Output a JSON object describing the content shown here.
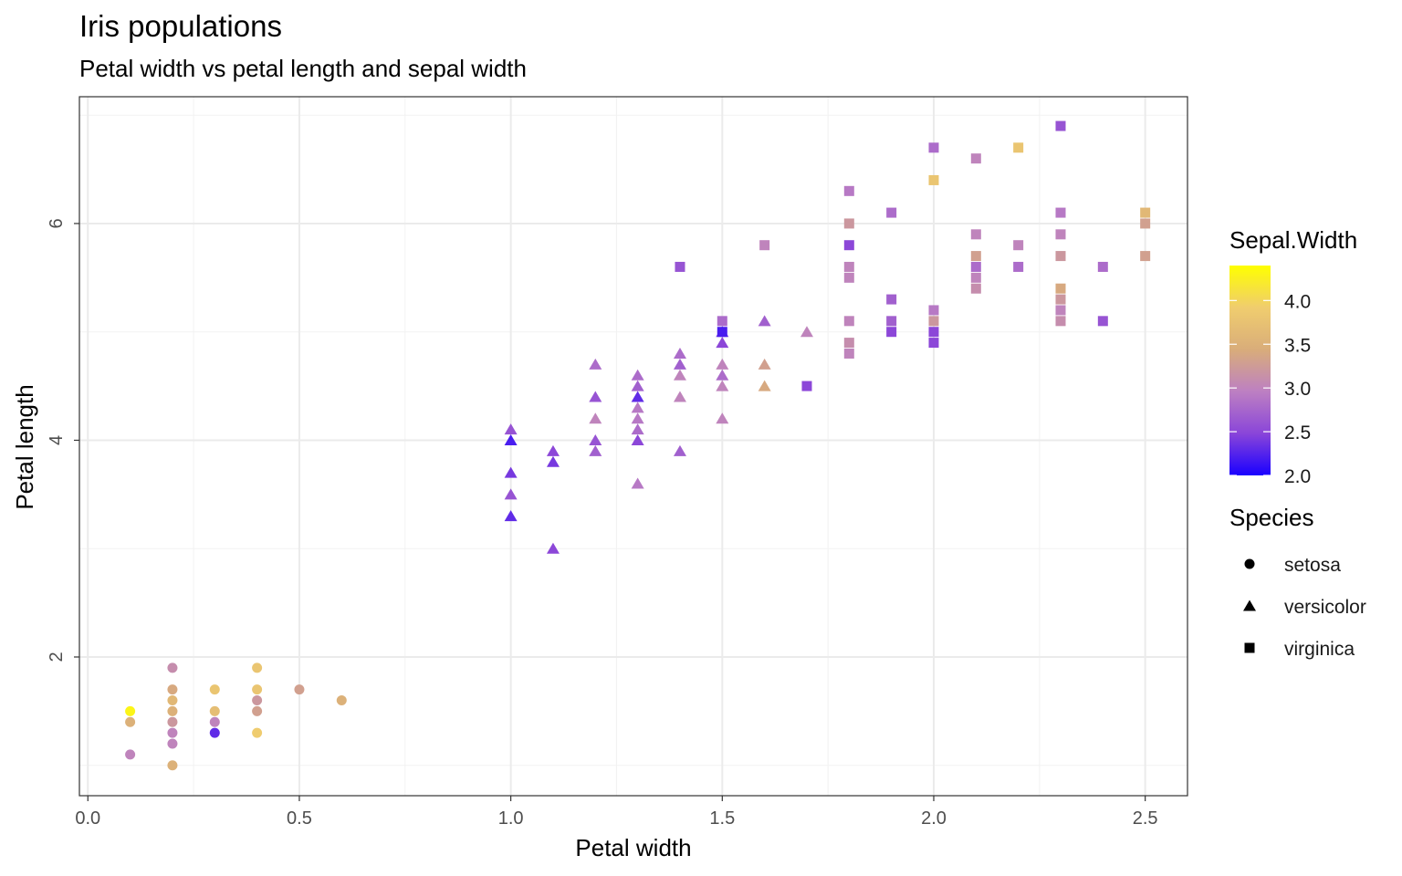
{
  "chart_data": {
    "type": "scatter",
    "title": "Iris populations",
    "subtitle": "Petal width vs petal length and sepal width",
    "xlabel": "Petal width",
    "ylabel": "Petal length",
    "xlim": [
      -0.02,
      2.6
    ],
    "ylim": [
      0.72,
      7.17
    ],
    "x_ticks": [
      "0.0",
      "0.5",
      "1.0",
      "1.5",
      "2.0",
      "2.5"
    ],
    "y_ticks": [
      "2",
      "4",
      "6"
    ],
    "grid": true,
    "legend_position": "right",
    "color_legend": {
      "title": "Sepal.Width",
      "ticks": [
        "2.0",
        "2.5",
        "3.0",
        "3.5",
        "4.0"
      ],
      "range": [
        2.0,
        4.4
      ],
      "colors": [
        "#1a00ff",
        "#8a45d9",
        "#bd80c2",
        "#d9ad7a",
        "#f0cd6e",
        "#ffff00"
      ]
    },
    "shape_legend": {
      "title": "Species",
      "entries": [
        {
          "label": "setosa",
          "shape": "circle"
        },
        {
          "label": "versicolor",
          "shape": "triangle"
        },
        {
          "label": "virginica",
          "shape": "square"
        }
      ]
    },
    "series": [
      {
        "name": "setosa",
        "shape": "circle",
        "points": [
          [
            0.1,
            1.5,
            4.3
          ],
          [
            0.1,
            1.4,
            3.5
          ],
          [
            0.1,
            1.1,
            3.0
          ],
          [
            0.2,
            1.9,
            3.1
          ],
          [
            0.2,
            1.7,
            3.4
          ],
          [
            0.2,
            1.6,
            3.6
          ],
          [
            0.2,
            1.5,
            3.5
          ],
          [
            0.2,
            1.4,
            3.2
          ],
          [
            0.2,
            1.3,
            3.0
          ],
          [
            0.2,
            1.2,
            3.0
          ],
          [
            0.2,
            1.0,
            3.5
          ],
          [
            0.3,
            1.7,
            3.8
          ],
          [
            0.3,
            1.5,
            3.7
          ],
          [
            0.3,
            1.4,
            3.0
          ],
          [
            0.3,
            1.3,
            2.3
          ],
          [
            0.4,
            1.9,
            3.8
          ],
          [
            0.4,
            1.7,
            3.8
          ],
          [
            0.4,
            1.6,
            3.2
          ],
          [
            0.4,
            1.5,
            3.3
          ],
          [
            0.4,
            1.3,
            3.9
          ],
          [
            0.5,
            1.7,
            3.3
          ],
          [
            0.6,
            1.6,
            3.5
          ]
        ]
      },
      {
        "name": "versicolor",
        "shape": "triangle",
        "points": [
          [
            1.0,
            4.1,
            2.6
          ],
          [
            1.0,
            4.0,
            2.2
          ],
          [
            1.0,
            3.7,
            2.4
          ],
          [
            1.0,
            3.5,
            2.6
          ],
          [
            1.0,
            3.3,
            2.3
          ],
          [
            1.1,
            3.9,
            2.5
          ],
          [
            1.1,
            3.8,
            2.4
          ],
          [
            1.1,
            3.0,
            2.5
          ],
          [
            1.2,
            4.7,
            2.8
          ],
          [
            1.2,
            4.4,
            2.6
          ],
          [
            1.2,
            4.2,
            3.0
          ],
          [
            1.2,
            4.0,
            2.6
          ],
          [
            1.2,
            3.9,
            2.7
          ],
          [
            1.3,
            4.6,
            2.8
          ],
          [
            1.3,
            4.5,
            2.7
          ],
          [
            1.3,
            4.4,
            2.3
          ],
          [
            1.3,
            4.3,
            2.9
          ],
          [
            1.3,
            4.2,
            2.9
          ],
          [
            1.3,
            4.1,
            2.8
          ],
          [
            1.3,
            4.0,
            2.5
          ],
          [
            1.3,
            3.6,
            2.9
          ],
          [
            1.4,
            4.8,
            2.8
          ],
          [
            1.4,
            4.7,
            2.7
          ],
          [
            1.4,
            4.6,
            3.0
          ],
          [
            1.4,
            4.4,
            3.0
          ],
          [
            1.4,
            3.9,
            2.7
          ],
          [
            1.5,
            5.0,
            2.4
          ],
          [
            1.5,
            4.9,
            2.5
          ],
          [
            1.5,
            4.7,
            3.0
          ],
          [
            1.5,
            4.6,
            2.8
          ],
          [
            1.5,
            4.5,
            3.0
          ],
          [
            1.5,
            4.2,
            3.0
          ],
          [
            1.6,
            5.1,
            2.7
          ],
          [
            1.6,
            4.7,
            3.3
          ],
          [
            1.6,
            4.5,
            3.4
          ],
          [
            1.7,
            5.0,
            3.0
          ]
        ]
      },
      {
        "name": "virginica",
        "shape": "square",
        "points": [
          [
            1.4,
            5.6,
            2.6
          ],
          [
            1.5,
            5.1,
            2.8
          ],
          [
            1.5,
            5.0,
            2.2
          ],
          [
            1.6,
            5.8,
            3.0
          ],
          [
            1.7,
            4.5,
            2.5
          ],
          [
            1.8,
            6.3,
            2.9
          ],
          [
            1.8,
            6.0,
            3.2
          ],
          [
            1.8,
            5.8,
            2.5
          ],
          [
            1.8,
            5.6,
            3.0
          ],
          [
            1.8,
            5.5,
            3.0
          ],
          [
            1.8,
            5.1,
            3.0
          ],
          [
            1.8,
            4.9,
            3.1
          ],
          [
            1.8,
            4.8,
            3.0
          ],
          [
            1.9,
            6.1,
            2.8
          ],
          [
            1.9,
            5.3,
            2.7
          ],
          [
            1.9,
            5.1,
            2.7
          ],
          [
            1.9,
            5.0,
            2.5
          ],
          [
            2.0,
            6.7,
            2.8
          ],
          [
            2.0,
            6.4,
            3.8
          ],
          [
            2.0,
            5.2,
            2.9
          ],
          [
            2.0,
            5.1,
            3.2
          ],
          [
            2.0,
            5.0,
            2.5
          ],
          [
            2.0,
            4.9,
            2.5
          ],
          [
            2.1,
            6.6,
            3.0
          ],
          [
            2.1,
            5.9,
            3.0
          ],
          [
            2.1,
            5.7,
            3.3
          ],
          [
            2.1,
            5.6,
            2.8
          ],
          [
            2.1,
            5.5,
            3.0
          ],
          [
            2.1,
            5.4,
            3.1
          ],
          [
            2.2,
            6.7,
            3.8
          ],
          [
            2.2,
            5.8,
            3.0
          ],
          [
            2.2,
            5.6,
            2.8
          ],
          [
            2.3,
            6.9,
            2.6
          ],
          [
            2.3,
            6.1,
            2.9
          ],
          [
            2.3,
            5.9,
            3.0
          ],
          [
            2.3,
            5.7,
            3.2
          ],
          [
            2.3,
            5.4,
            3.4
          ],
          [
            2.3,
            5.3,
            3.2
          ],
          [
            2.3,
            5.2,
            3.0
          ],
          [
            2.3,
            5.1,
            3.1
          ],
          [
            2.4,
            5.6,
            2.8
          ],
          [
            2.4,
            5.1,
            2.6
          ],
          [
            2.5,
            6.1,
            3.6
          ],
          [
            2.5,
            6.0,
            3.3
          ],
          [
            2.5,
            5.7,
            3.3
          ]
        ]
      }
    ]
  }
}
